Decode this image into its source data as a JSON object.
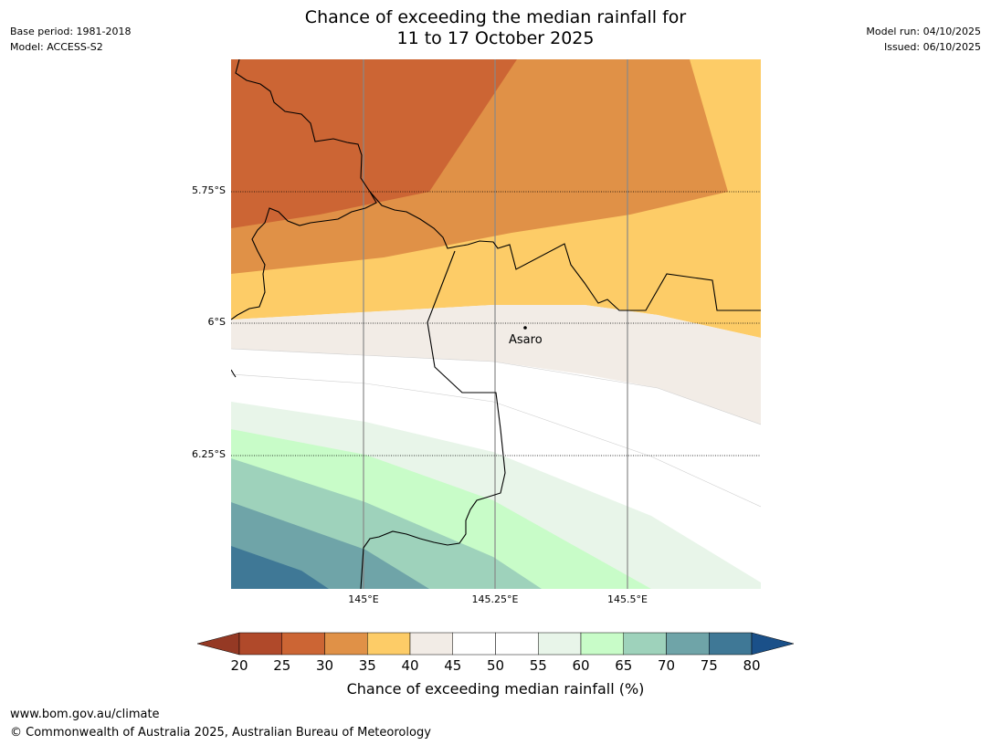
{
  "header": {
    "title_line1": "Chance of exceeding the median rainfall for",
    "title_line2": "11 to 17 October 2025",
    "base_period": "Base period: 1981-2018",
    "model": "Model: ACCESS-S2",
    "model_run": "Model run: 04/10/2025",
    "issued": "Issued: 06/10/2025"
  },
  "map": {
    "lat_labels": [
      "5.75°S",
      "6°S",
      "6.25°S"
    ],
    "lon_labels": [
      "145°E",
      "145.25°E",
      "145.5°E"
    ],
    "place": "Asaro"
  },
  "colorbar": {
    "ticks": [
      "20",
      "25",
      "30",
      "35",
      "40",
      "45",
      "50",
      "55",
      "60",
      "65",
      "70",
      "75",
      "80"
    ],
    "colors": [
      "#b0492a",
      "#cc6534",
      "#e09147",
      "#fdcc67",
      "#f2ece6",
      "#ffffff",
      "#ffffff",
      "#e8f5e9",
      "#c8fcc8",
      "#9ed2bb",
      "#6fa4a8",
      "#3f7896"
    ],
    "under_color": "#953924",
    "over_color": "#1a5089",
    "label": "Chance of exceeding median rainfall (%)"
  },
  "footer": {
    "url": "www.bom.gov.au/climate",
    "copyright": "© Commonwealth of Australia 2025, Australian Bureau of Meteorology"
  }
}
